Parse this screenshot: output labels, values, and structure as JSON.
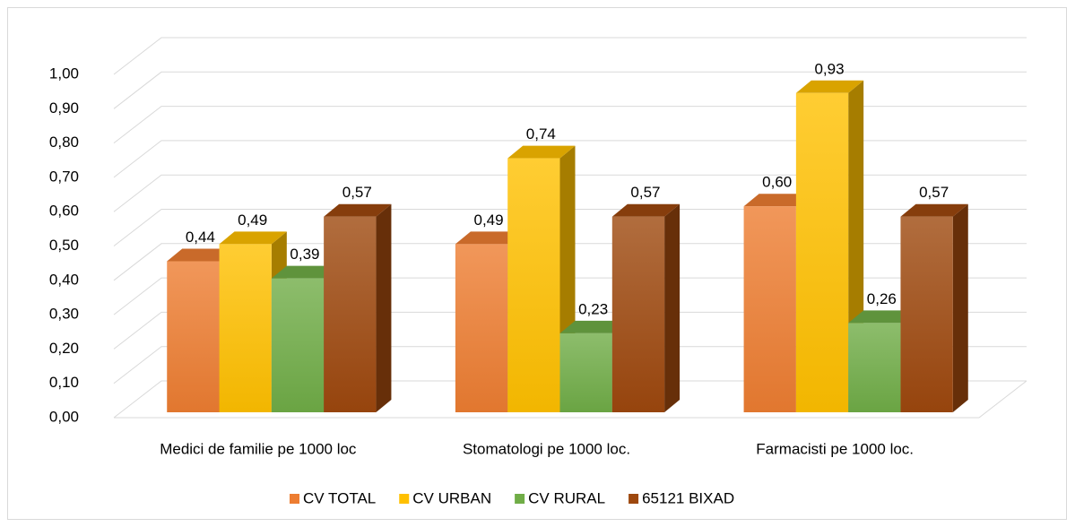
{
  "chart_data": {
    "type": "bar3d",
    "categories": [
      "Medici de familie pe 1000 loc",
      "Stomatologi pe 1000 loc.",
      "Farmacisti pe 1000 loc."
    ],
    "series": [
      {
        "name": "CV TOTAL",
        "color": "#ed7d31",
        "values": [
          0.44,
          0.49,
          0.6
        ],
        "value_labels": [
          "0,44",
          "0,49",
          "0,60"
        ]
      },
      {
        "name": "CV URBAN",
        "color": "#ffc000",
        "values": [
          0.49,
          0.74,
          0.93
        ],
        "value_labels": [
          "0,49",
          "0,74",
          "0,93"
        ]
      },
      {
        "name": "CV RURAL",
        "color": "#70ad47",
        "values": [
          0.39,
          0.23,
          0.26
        ],
        "value_labels": [
          "0,39",
          "0,23",
          "0,26"
        ]
      },
      {
        "name": "65121 BIXAD",
        "color": "#9e480e",
        "values": [
          0.57,
          0.57,
          0.57
        ],
        "value_labels": [
          "0,57",
          "0,57",
          "0,57"
        ]
      }
    ],
    "ylim": [
      0,
      1
    ],
    "yticks": [
      {
        "value": 0,
        "label": "0,00"
      },
      {
        "value": 0.1,
        "label": "0,10"
      },
      {
        "value": 0.2,
        "label": "0,20"
      },
      {
        "value": 0.3,
        "label": "0,30"
      },
      {
        "value": 0.4,
        "label": "0,40"
      },
      {
        "value": 0.5,
        "label": "0,50"
      },
      {
        "value": 0.6,
        "label": "0,60"
      },
      {
        "value": 0.7,
        "label": "0,70"
      },
      {
        "value": 0.8,
        "label": "0,80"
      },
      {
        "value": 0.9,
        "label": "0,90"
      },
      {
        "value": 1,
        "label": "1,00"
      }
    ],
    "grid": true,
    "legend": "bottom"
  }
}
